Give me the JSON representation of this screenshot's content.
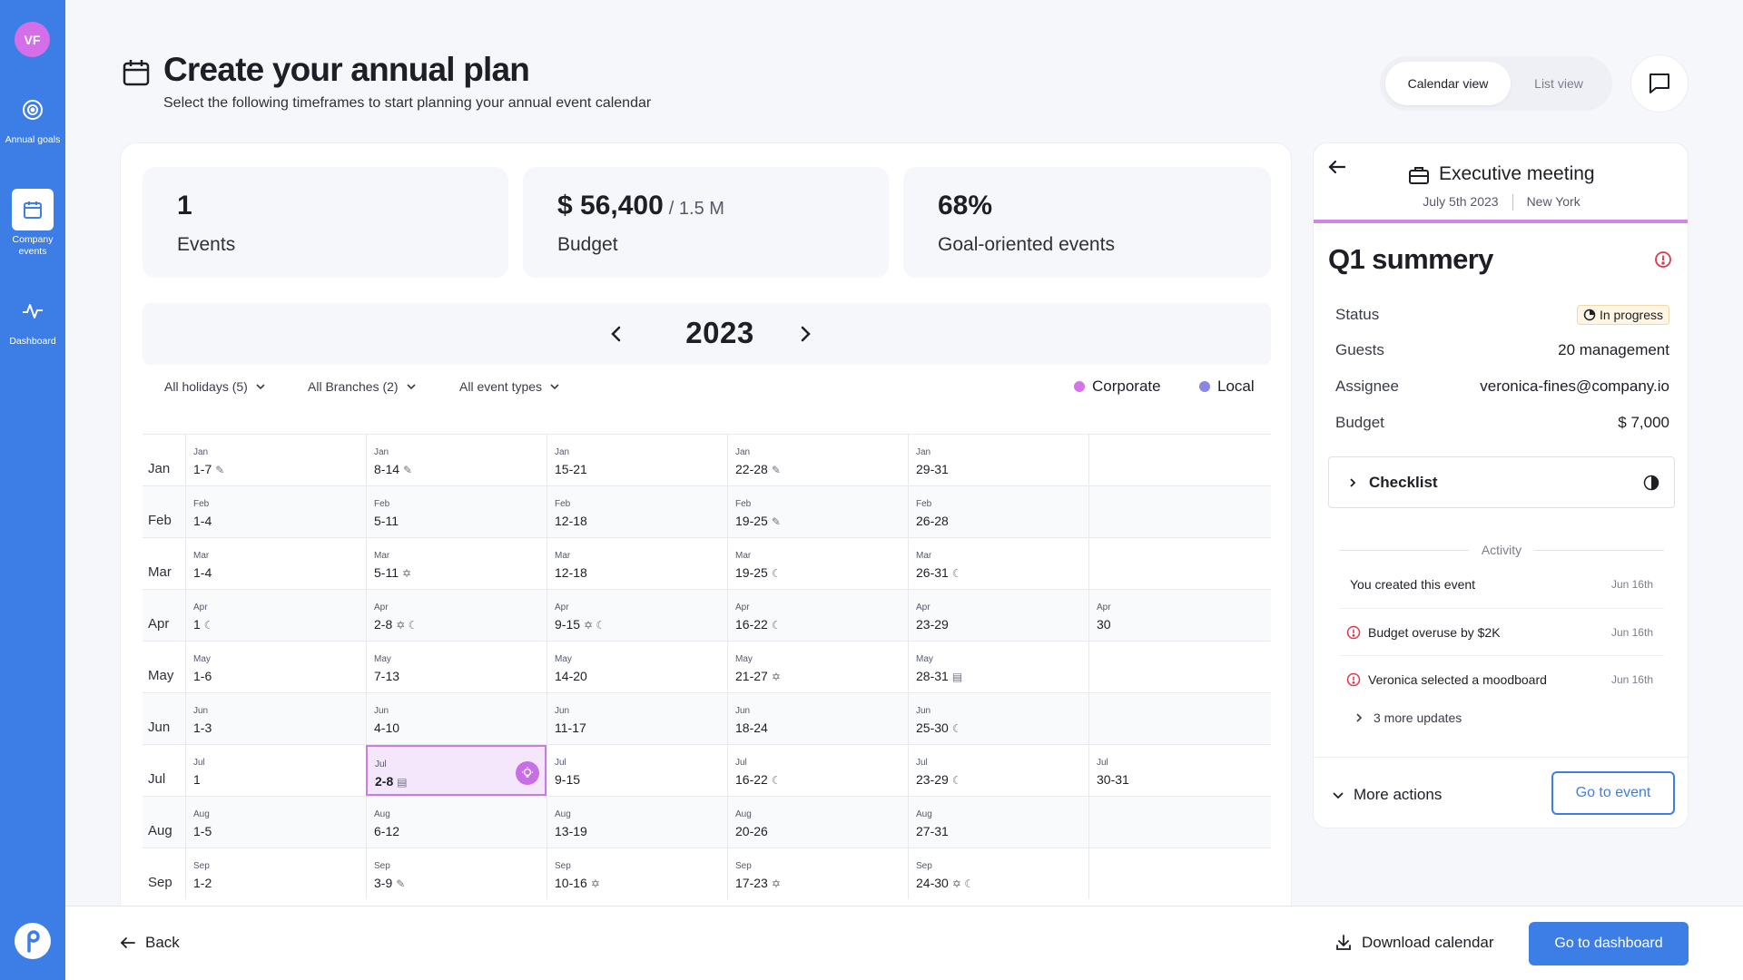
{
  "user": {
    "initials": "VF"
  },
  "sidebar": {
    "items": [
      {
        "label": "Annual goals",
        "icon": "target-icon"
      },
      {
        "label": "Company events",
        "icon": "calendar-icon",
        "active": true
      },
      {
        "label": "Dashboard",
        "icon": "pulse-icon"
      }
    ],
    "logo": "p-logo-icon"
  },
  "header": {
    "title": "Create your annual plan",
    "subtitle": "Select the following timeframes to start planning your annual event calendar",
    "views": {
      "calendar": "Calendar view",
      "list": "List view"
    }
  },
  "stats": [
    {
      "value": "1",
      "sub": "",
      "label": "Events"
    },
    {
      "value": "$ 56,400",
      "sub": "/ 1.5 M",
      "label": "Budget"
    },
    {
      "value": "68%",
      "sub": "",
      "label": "Goal-oriented events"
    }
  ],
  "calendar": {
    "year": "2023",
    "filters": [
      "All holidays (5)",
      "All Branches (2)",
      "All event types"
    ],
    "legend": [
      {
        "label": "Corporate",
        "color": "#d375e8"
      },
      {
        "label": "Local",
        "color": "#8a86e3"
      }
    ],
    "rows": [
      {
        "month": "Jan",
        "weeks": [
          {
            "m": "Jan",
            "r": "1-7",
            "ic": "✎"
          },
          {
            "m": "Jan",
            "r": "8-14",
            "ic": "✎"
          },
          {
            "m": "Jan",
            "r": "15-21",
            "ic": ""
          },
          {
            "m": "Jan",
            "r": "22-28",
            "ic": "✎"
          },
          {
            "m": "Jan",
            "r": "29-31",
            "ic": ""
          },
          {
            "m": "",
            "r": "",
            "ic": ""
          }
        ]
      },
      {
        "month": "Feb",
        "weeks": [
          {
            "m": "Feb",
            "r": "1-4",
            "ic": ""
          },
          {
            "m": "Feb",
            "r": "5-11",
            "ic": ""
          },
          {
            "m": "Feb",
            "r": "12-18",
            "ic": ""
          },
          {
            "m": "Feb",
            "r": "19-25",
            "ic": "✎"
          },
          {
            "m": "Feb",
            "r": "26-28",
            "ic": ""
          },
          {
            "m": "",
            "r": "",
            "ic": ""
          }
        ]
      },
      {
        "month": "Mar",
        "weeks": [
          {
            "m": "Mar",
            "r": "1-4",
            "ic": ""
          },
          {
            "m": "Mar",
            "r": "5-11",
            "ic": "✡"
          },
          {
            "m": "Mar",
            "r": "12-18",
            "ic": ""
          },
          {
            "m": "Mar",
            "r": "19-25",
            "ic": "☾"
          },
          {
            "m": "Mar",
            "r": "26-31",
            "ic": "☾"
          },
          {
            "m": "",
            "r": "",
            "ic": ""
          }
        ]
      },
      {
        "month": "Apr",
        "weeks": [
          {
            "m": "Apr",
            "r": "1",
            "ic": "☾"
          },
          {
            "m": "Apr",
            "r": "2-8",
            "ic": "✡ ☾"
          },
          {
            "m": "Apr",
            "r": "9-15",
            "ic": "✡ ☾"
          },
          {
            "m": "Apr",
            "r": "16-22",
            "ic": "☾"
          },
          {
            "m": "Apr",
            "r": "23-29",
            "ic": ""
          },
          {
            "m": "Apr",
            "r": "30",
            "ic": ""
          }
        ]
      },
      {
        "month": "May",
        "weeks": [
          {
            "m": "May",
            "r": "1-6",
            "ic": ""
          },
          {
            "m": "May",
            "r": "7-13",
            "ic": ""
          },
          {
            "m": "May",
            "r": "14-20",
            "ic": ""
          },
          {
            "m": "May",
            "r": "21-27",
            "ic": "✡"
          },
          {
            "m": "May",
            "r": "28-31",
            "ic": "▤"
          },
          {
            "m": "",
            "r": "",
            "ic": ""
          }
        ]
      },
      {
        "month": "Jun",
        "weeks": [
          {
            "m": "Jun",
            "r": "1-3",
            "ic": ""
          },
          {
            "m": "Jun",
            "r": "4-10",
            "ic": ""
          },
          {
            "m": "Jun",
            "r": "11-17",
            "ic": ""
          },
          {
            "m": "Jun",
            "r": "18-24",
            "ic": ""
          },
          {
            "m": "Jun",
            "r": "25-30",
            "ic": "☾"
          },
          {
            "m": "",
            "r": "",
            "ic": ""
          }
        ]
      },
      {
        "month": "Jul",
        "weeks": [
          {
            "m": "Jul",
            "r": "1",
            "ic": ""
          },
          {
            "m": "Jul",
            "r": "2-8",
            "ic": "▤",
            "selected": true
          },
          {
            "m": "Jul",
            "r": "9-15",
            "ic": ""
          },
          {
            "m": "Jul",
            "r": "16-22",
            "ic": "☾"
          },
          {
            "m": "Jul",
            "r": "23-29",
            "ic": "☾"
          },
          {
            "m": "Jul",
            "r": "30-31",
            "ic": ""
          }
        ]
      },
      {
        "month": "Aug",
        "weeks": [
          {
            "m": "Aug",
            "r": "1-5",
            "ic": ""
          },
          {
            "m": "Aug",
            "r": "6-12",
            "ic": ""
          },
          {
            "m": "Aug",
            "r": "13-19",
            "ic": ""
          },
          {
            "m": "Aug",
            "r": "20-26",
            "ic": ""
          },
          {
            "m": "Aug",
            "r": "27-31",
            "ic": ""
          },
          {
            "m": "",
            "r": "",
            "ic": ""
          }
        ]
      },
      {
        "month": "Sep",
        "weeks": [
          {
            "m": "Sep",
            "r": "1-2",
            "ic": ""
          },
          {
            "m": "Sep",
            "r": "3-9",
            "ic": "✎"
          },
          {
            "m": "Sep",
            "r": "10-16",
            "ic": "✡"
          },
          {
            "m": "Sep",
            "r": "17-23",
            "ic": "✡"
          },
          {
            "m": "Sep",
            "r": "24-30",
            "ic": "✡ ☾"
          },
          {
            "m": "",
            "r": "",
            "ic": ""
          }
        ]
      }
    ]
  },
  "event": {
    "title": "Executive meeting",
    "date": "July 5th 2023",
    "location": "New York",
    "summary_title": "Q1 summery",
    "details": [
      {
        "key": "Status",
        "value": "In progress"
      },
      {
        "key": "Guests",
        "value": "20 management"
      },
      {
        "key": "Assignee",
        "value": "veronica-fines@company.io"
      },
      {
        "key": "Budget",
        "value": "$ 7,000"
      }
    ],
    "checklist": "Checklist",
    "activity_label": "Activity",
    "activity": [
      {
        "text": "You created this event",
        "date": "Jun 16th",
        "alert": false
      },
      {
        "text": "Budget overuse by $2K",
        "date": "Jun 16th",
        "alert": true
      },
      {
        "text": "Veronica selected a moodboard",
        "date": "Jun 16th",
        "alert": true
      }
    ],
    "more_updates": "3 more updates",
    "more_actions": "More actions",
    "go_to_event": "Go to event"
  },
  "footer": {
    "back": "Back",
    "download": "Download calendar",
    "dashboard": "Go to dashboard"
  },
  "colors": {
    "accent": "#3d7ee6",
    "selected": "#c77ee0",
    "alert": "#e0374f"
  }
}
